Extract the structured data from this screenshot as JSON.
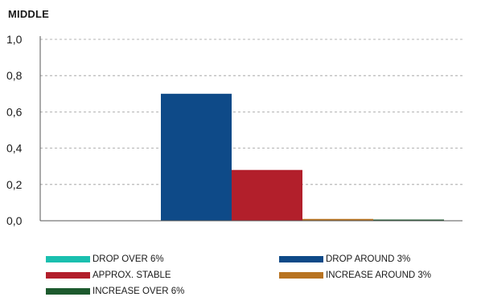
{
  "chart_data": {
    "type": "bar",
    "title": "MIDDLE",
    "xlabel": "",
    "ylabel": "",
    "ylim": [
      0,
      1
    ],
    "yticks": [
      "0,0",
      "0,2",
      "0,4",
      "0,6",
      "0,8",
      "1,0"
    ],
    "grid": true,
    "legend_position": "bottom",
    "series": [
      {
        "name": "DROP OVER 6%",
        "color": "#1ABFAF",
        "value": 0.0
      },
      {
        "name": "DROP AROUND 3%",
        "color": "#0E4A88",
        "value": 0.7
      },
      {
        "name": "APPROX. STABLE",
        "color": "#B21F2B",
        "value": 0.28
      },
      {
        "name": "INCREASE AROUND 3%",
        "color": "#B87321",
        "value": 0.01
      },
      {
        "name": "INCREASE OVER 6%",
        "color": "#1D5A2E",
        "value": 0.004
      }
    ]
  }
}
